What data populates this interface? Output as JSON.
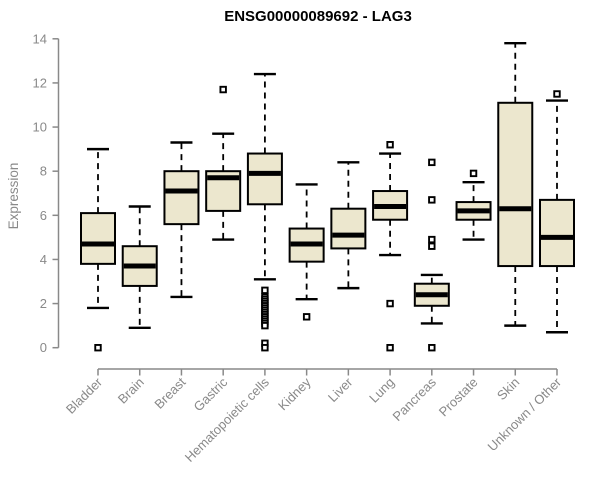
{
  "page": {
    "background": "#ffffff"
  },
  "chart_data": {
    "type": "boxplot",
    "title": "ENSG00000089692 - LAG3",
    "ylabel": "Expression",
    "xlabel": "",
    "ylim": [
      0,
      14
    ],
    "yticks": [
      0,
      2,
      4,
      6,
      8,
      10,
      12,
      14
    ],
    "grid": false,
    "legend": false,
    "colors": {
      "box_fill": "#ece7ce",
      "box_border": "#000000",
      "median": "#000000",
      "whisker": "#000000",
      "outlier_fill": "#ffffff",
      "axis": "#898989",
      "axis_text": "#898989",
      "title_text": "#000000"
    },
    "categories": [
      "Bladder",
      "Brain",
      "Breast",
      "Gastric",
      "Hematopoietic cells",
      "Kidney",
      "Liver",
      "Lung",
      "Pancreas",
      "Prostate",
      "Skin",
      "Unknown / Other"
    ],
    "boxes": [
      {
        "category": "Bladder",
        "whisker_low": 1.8,
        "q1": 3.8,
        "median": 4.7,
        "q3": 6.1,
        "whisker_high": 9.0,
        "outliers": [
          0
        ]
      },
      {
        "category": "Brain",
        "whisker_low": 0.9,
        "q1": 2.8,
        "median": 3.7,
        "q3": 4.6,
        "whisker_high": 6.4,
        "outliers": []
      },
      {
        "category": "Breast",
        "whisker_low": 2.3,
        "q1": 5.6,
        "median": 7.1,
        "q3": 8.0,
        "whisker_high": 9.3,
        "outliers": []
      },
      {
        "category": "Gastric",
        "whisker_low": 4.9,
        "q1": 6.2,
        "median": 7.7,
        "q3": 8.0,
        "whisker_high": 9.7,
        "outliers": [
          11.7
        ]
      },
      {
        "category": "Hematopoietic cells",
        "whisker_low": 3.1,
        "q1": 6.5,
        "median": 7.9,
        "q3": 8.8,
        "whisker_high": 12.4,
        "outliers": [
          2.6,
          2.3,
          2.2,
          2.1,
          2.0,
          1.9,
          1.8,
          1.7,
          1.6,
          1.5,
          1.4,
          1.3,
          1.2,
          1.1,
          1.0,
          0.2,
          0
        ]
      },
      {
        "category": "Kidney",
        "whisker_low": 2.2,
        "q1": 3.9,
        "median": 4.7,
        "q3": 5.4,
        "whisker_high": 7.4,
        "outliers": [
          1.4
        ]
      },
      {
        "category": "Liver",
        "whisker_low": 2.7,
        "q1": 4.5,
        "median": 5.1,
        "q3": 6.3,
        "whisker_high": 8.4,
        "outliers": []
      },
      {
        "category": "Lung",
        "whisker_low": 4.2,
        "q1": 5.8,
        "median": 6.4,
        "q3": 7.1,
        "whisker_high": 8.8,
        "outliers": [
          9.2,
          2.0,
          0
        ]
      },
      {
        "category": "Pancreas",
        "whisker_low": 1.1,
        "q1": 1.9,
        "median": 2.4,
        "q3": 2.9,
        "whisker_high": 3.3,
        "outliers": [
          8.4,
          6.7,
          4.9,
          4.6,
          0
        ]
      },
      {
        "category": "Prostate",
        "whisker_low": 4.9,
        "q1": 5.8,
        "median": 6.2,
        "q3": 6.6,
        "whisker_high": 7.5,
        "outliers": [
          7.9
        ]
      },
      {
        "category": "Skin",
        "whisker_low": 1.0,
        "q1": 3.7,
        "median": 6.3,
        "q3": 11.1,
        "whisker_high": 13.8,
        "outliers": []
      },
      {
        "category": "Unknown / Other",
        "whisker_low": 0.7,
        "q1": 3.7,
        "median": 5.0,
        "q3": 6.7,
        "whisker_high": 11.2,
        "outliers": [
          11.5
        ]
      }
    ]
  }
}
